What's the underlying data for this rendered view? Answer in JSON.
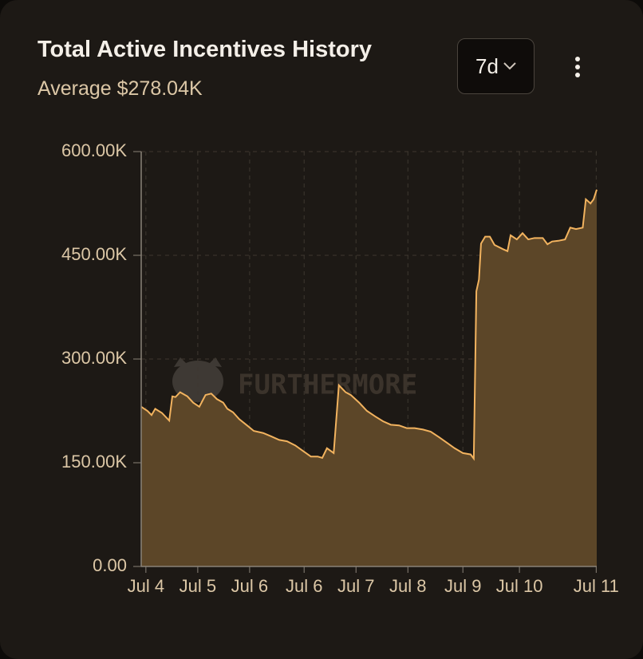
{
  "header": {
    "title": "Total Active Incentives History",
    "subtitle": "Average $278.04K",
    "range_button": "7d",
    "watermark": "FURTHERMORE"
  },
  "chart_data": {
    "type": "area",
    "color": "#f2b35f",
    "fill": "#5c4628",
    "grid": true,
    "x": [
      -0.09,
      0.03,
      0.11,
      0.18,
      0.31,
      0.45,
      0.51,
      0.57,
      0.66,
      0.8,
      0.91,
      1.03,
      1.15,
      1.26,
      1.37,
      1.49,
      1.57,
      1.68,
      1.8,
      1.95,
      2.08,
      2.26,
      2.42,
      2.57,
      2.72,
      2.88,
      3.03,
      3.18,
      3.31,
      3.4,
      3.49,
      3.62,
      3.72,
      3.85,
      3.95,
      4.11,
      4.26,
      4.42,
      4.57,
      4.72,
      4.88,
      5.03,
      5.18,
      5.34,
      5.49,
      5.65,
      5.8,
      5.95,
      6.11,
      6.26,
      6.32,
      6.37,
      6.42,
      6.46,
      6.54,
      6.63,
      6.72,
      6.88,
      6.97,
      7.03,
      7.15,
      7.26,
      7.37,
      7.49,
      7.65,
      7.74,
      7.83,
      7.95,
      8.08,
      8.18,
      8.29,
      8.42,
      8.48,
      8.57,
      8.63,
      8.69
    ],
    "values": [
      231000,
      225000,
      219000,
      228000,
      222000,
      211000,
      246000,
      245000,
      252000,
      246000,
      237000,
      231000,
      248000,
      250000,
      242000,
      237000,
      228000,
      223000,
      213000,
      204000,
      196000,
      193000,
      188000,
      183000,
      181000,
      175000,
      167000,
      159000,
      159000,
      157000,
      171000,
      164000,
      262000,
      252000,
      248000,
      237000,
      225000,
      217000,
      210000,
      205000,
      204000,
      200000,
      200000,
      198000,
      195000,
      187000,
      179000,
      171000,
      164000,
      162000,
      156000,
      398000,
      415000,
      467000,
      477000,
      477000,
      465000,
      459000,
      456000,
      479000,
      473000,
      482000,
      473000,
      475000,
      475000,
      466000,
      470000,
      471000,
      473000,
      490000,
      488000,
      490000,
      531000,
      525000,
      531000,
      545000
    ],
    "xlim": [
      -0.09,
      8.69
    ],
    "xticks": [
      {
        "value": 0,
        "label": "Jul 4"
      },
      {
        "value": 1,
        "label": "Jul 5"
      },
      {
        "value": 2,
        "label": "Jul 6"
      },
      {
        "value": 3.05,
        "label": "Jul 6"
      },
      {
        "value": 4.05,
        "label": "Jul 7"
      },
      {
        "value": 5.05,
        "label": "Jul 8"
      },
      {
        "value": 6.11,
        "label": "Jul 9"
      },
      {
        "value": 7.2,
        "label": "Jul 10"
      },
      {
        "value": 8.68,
        "label": "Jul 11"
      }
    ],
    "ylim": [
      0,
      600000
    ],
    "yticks": [
      {
        "value": 0,
        "label": "0.00"
      },
      {
        "value": 150000,
        "label": "150.00K"
      },
      {
        "value": 300000,
        "label": "300.00K"
      },
      {
        "value": 450000,
        "label": "450.00K"
      },
      {
        "value": 600000,
        "label": "600.00K"
      }
    ]
  }
}
